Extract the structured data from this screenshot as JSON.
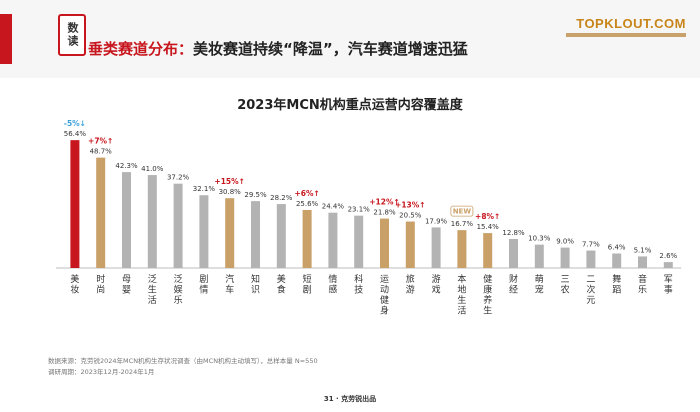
{
  "header": {
    "badge": "数读",
    "headline_accent": "垂类赛道分布：",
    "headline_rest": "美妆赛道持续“降温”，汽车赛道增速迅猛",
    "logo": "TOPKLOUT.COM"
  },
  "chart_data": {
    "type": "bar",
    "title": "2023年MCN机构重点运营内容覆盖度",
    "categories": [
      "美妆",
      "时尚",
      "母婴",
      "泛生活",
      "泛娱乐",
      "剧情",
      "汽车",
      "知识",
      "美食",
      "短剧",
      "情感",
      "科技",
      "运动健身",
      "旅游",
      "游戏",
      "本地生活",
      "健康养生",
      "财经",
      "萌宠",
      "三农",
      "二次元",
      "舞蹈",
      "音乐",
      "军事"
    ],
    "values": [
      56.4,
      48.7,
      42.3,
      41.0,
      37.2,
      32.1,
      30.8,
      29.5,
      28.2,
      25.6,
      24.4,
      23.1,
      21.8,
      20.5,
      17.9,
      16.7,
      15.4,
      12.8,
      10.3,
      9.0,
      7.7,
      6.4,
      5.1,
      2.6
    ],
    "value_labels": [
      "56.4%",
      "48.7%",
      "42.3%",
      "41.0%",
      "37.2%",
      "32.1%",
      "30.8%",
      "29.5%",
      "28.2%",
      "25.6%",
      "24.4%",
      "23.1%",
      "21.8%",
      "20.5%",
      "17.9%",
      "16.7%",
      "15.4%",
      "12.8%",
      "10.3%",
      "9.0%",
      "7.7%",
      "6.4%",
      "5.1%",
      "2.6%"
    ],
    "bar_colors": [
      "#c7161d",
      "#c9a068",
      "#b3b3b3",
      "#b3b3b3",
      "#b3b3b3",
      "#b3b3b3",
      "#c9a068",
      "#b3b3b3",
      "#b3b3b3",
      "#c9a068",
      "#b3b3b3",
      "#b3b3b3",
      "#c9a068",
      "#c9a068",
      "#b3b3b3",
      "#c9a068",
      "#c9a068",
      "#b3b3b3",
      "#b3b3b3",
      "#b3b3b3",
      "#b3b3b3",
      "#b3b3b3",
      "#b3b3b3",
      "#b3b3b3"
    ],
    "changes": [
      {
        "index": 0,
        "text": "-5%↓",
        "color": "#3aa0d8"
      },
      {
        "index": 1,
        "text": "+7%↑",
        "color": "#c7161d"
      },
      {
        "index": 6,
        "text": "+15%↑",
        "color": "#c7161d"
      },
      {
        "index": 9,
        "text": "+6%↑",
        "color": "#c7161d"
      },
      {
        "index": 12,
        "text": "+12%↑",
        "color": "#c7161d"
      },
      {
        "index": 13,
        "text": "+13%↑",
        "color": "#c7161d"
      },
      {
        "index": 16,
        "text": "+8%↑",
        "color": "#c7161d"
      }
    ],
    "new_tag": {
      "index": 15,
      "text": "NEW"
    },
    "ylim": [
      0,
      60
    ],
    "grid": false
  },
  "footer": {
    "source": "数据来源：克劳锐2024年MCN机构生存状况调查（由MCN机构主动填写），总样本量 N=550",
    "period": "调研周期：2023年12月-2024年1月",
    "page": "31 · 克劳锐出品"
  }
}
